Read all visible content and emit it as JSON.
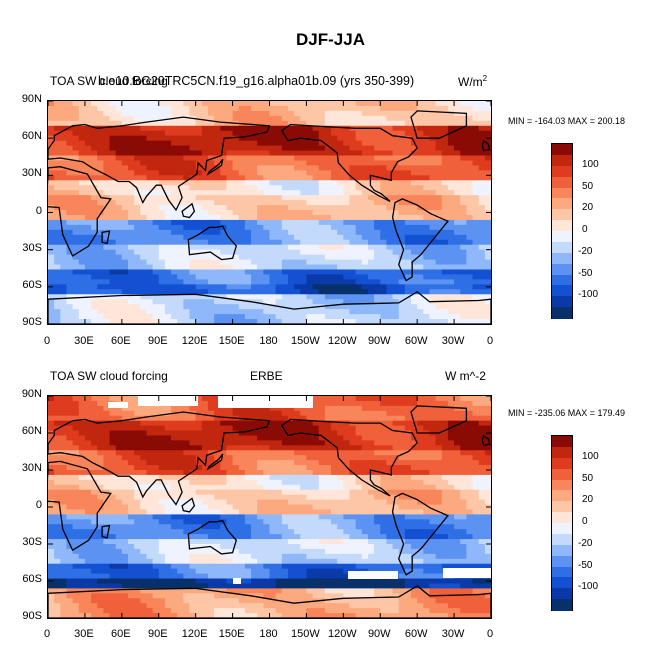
{
  "title": "DJF-JJA",
  "colors": {
    "scale": [
      "#08306b",
      "#0a3aa8",
      "#1450d2",
      "#2e6fe6",
      "#5c93f2",
      "#8fb8fa",
      "#c3dafd",
      "#eef3ff",
      "#ffe6d8",
      "#fdc7a7",
      "#fca97f",
      "#f9855a",
      "#f0603a",
      "#de3b1f",
      "#c1260f",
      "#8a0a05"
    ],
    "land_outline": "#000000"
  },
  "colorbar_labels": [
    "100",
    "50",
    "20",
    "0",
    "-20",
    "-50",
    "-100"
  ],
  "lat_labels": [
    "90N",
    "60N",
    "30N",
    "0",
    "30S",
    "60S",
    "90S"
  ],
  "lon_labels": [
    "0",
    "30E",
    "60E",
    "90E",
    "120E",
    "150E",
    "180",
    "150W",
    "120W",
    "90W",
    "60W",
    "30W",
    "0"
  ],
  "panels": [
    {
      "left_title": "TOA SW cloud forcing",
      "center_title": "b.e10.BG20TRC5CN.f19_g16.alpha01b.09 (yrs 350-399)",
      "units": "W/m",
      "units_sup": "2",
      "stats": "MIN = -164.03 MAX = 200.18"
    },
    {
      "left_title": "TOA SW cloud forcing",
      "center_title": "ERBE",
      "units": "W m^-2",
      "units_sup": "",
      "stats": "MIN = -235.06 MAX = 179.49"
    }
  ]
}
